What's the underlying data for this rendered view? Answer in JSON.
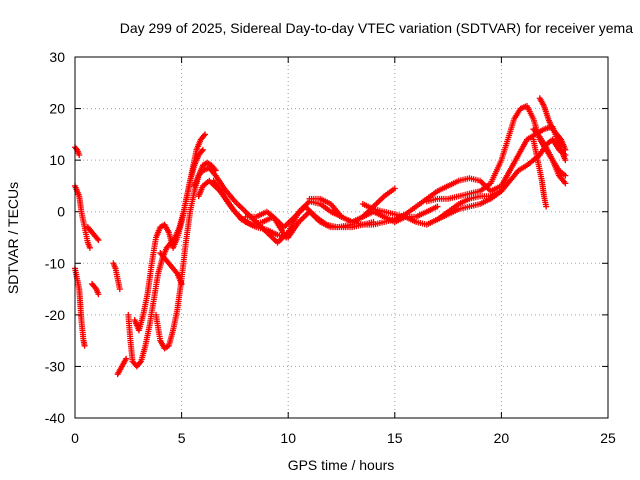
{
  "chart_data": {
    "type": "scatter",
    "title": "Day 299 of 2025, Sidereal Day-to-day VTEC variation (SDTVAR) for receiver yema",
    "xlabel": "GPS time / hours",
    "ylabel": "SDTVAR / TECUs",
    "xlim": [
      0,
      25
    ],
    "ylim": [
      -40,
      30
    ],
    "xticks": [
      0,
      5,
      10,
      15,
      20,
      25
    ],
    "yticks": [
      -40,
      -30,
      -20,
      -10,
      0,
      10,
      20,
      30
    ],
    "grid": true,
    "marker": "+",
    "series_color": "#ff0000",
    "series": [
      {
        "name": "trace-a",
        "points": [
          [
            0.0,
            12.5
          ],
          [
            0.1,
            12.0
          ],
          [
            0.2,
            11.0
          ]
        ]
      },
      {
        "name": "trace-b",
        "points": [
          [
            0.0,
            5.0
          ],
          [
            0.2,
            3.0
          ],
          [
            0.3,
            0.0
          ],
          [
            0.4,
            -2.0
          ],
          [
            0.5,
            -4.0
          ],
          [
            0.6,
            -6.0
          ],
          [
            0.7,
            -7.0
          ]
        ]
      },
      {
        "name": "trace-c",
        "points": [
          [
            0.0,
            -11.0
          ],
          [
            0.1,
            -13.0
          ],
          [
            0.2,
            -15.0
          ],
          [
            0.25,
            -18.0
          ],
          [
            0.3,
            -21.0
          ],
          [
            0.35,
            -23.0
          ],
          [
            0.4,
            -25.0
          ],
          [
            0.45,
            -26.0
          ]
        ]
      },
      {
        "name": "trace-d",
        "points": [
          [
            0.6,
            -3.0
          ],
          [
            0.8,
            -4.0
          ],
          [
            1.0,
            -5.0
          ],
          [
            1.1,
            -5.5
          ]
        ]
      },
      {
        "name": "trace-e",
        "points": [
          [
            0.8,
            -14.0
          ],
          [
            1.0,
            -15.0
          ],
          [
            1.1,
            -16.0
          ]
        ]
      },
      {
        "name": "trace-f",
        "points": [
          [
            1.8,
            -10.0
          ],
          [
            1.9,
            -11.0
          ],
          [
            2.0,
            -13.0
          ],
          [
            2.1,
            -15.0
          ]
        ]
      },
      {
        "name": "trace-g",
        "points": [
          [
            2.0,
            -31.5
          ],
          [
            2.2,
            -30.0
          ],
          [
            2.4,
            -28.5
          ]
        ]
      },
      {
        "name": "trace-h",
        "points": [
          [
            2.5,
            -20.0
          ],
          [
            2.6,
            -25.0
          ],
          [
            2.7,
            -29.0
          ],
          [
            2.9,
            -30.0
          ],
          [
            3.1,
            -29.0
          ],
          [
            3.3,
            -26.0
          ],
          [
            3.5,
            -22.0
          ],
          [
            3.7,
            -17.0
          ],
          [
            3.9,
            -12.0
          ],
          [
            4.1,
            -9.0
          ],
          [
            4.3,
            -7.0
          ],
          [
            4.5,
            -6.0
          ],
          [
            4.7,
            -5.0
          ],
          [
            4.9,
            -3.0
          ],
          [
            5.1,
            0.0
          ],
          [
            5.3,
            4.0
          ],
          [
            5.5,
            8.0
          ],
          [
            5.7,
            12.0
          ],
          [
            5.9,
            14.0
          ],
          [
            6.1,
            15.0
          ]
        ]
      },
      {
        "name": "trace-i",
        "points": [
          [
            2.8,
            -21.0
          ],
          [
            3.0,
            -23.0
          ],
          [
            3.2,
            -20.0
          ],
          [
            3.4,
            -16.0
          ],
          [
            3.6,
            -10.0
          ],
          [
            3.8,
            -5.0
          ],
          [
            4.0,
            -3.0
          ],
          [
            4.2,
            -2.5
          ],
          [
            4.4,
            -4.0
          ],
          [
            4.6,
            -7.0
          ],
          [
            4.8,
            -5.0
          ],
          [
            5.0,
            -2.0
          ],
          [
            5.2,
            2.0
          ],
          [
            5.4,
            6.0
          ],
          [
            5.6,
            9.0
          ],
          [
            5.8,
            11.0
          ],
          [
            6.0,
            12.0
          ]
        ]
      },
      {
        "name": "trace-j",
        "points": [
          [
            3.8,
            -20.0
          ],
          [
            4.0,
            -25.0
          ],
          [
            4.2,
            -26.5
          ],
          [
            4.4,
            -26.0
          ],
          [
            4.6,
            -23.0
          ],
          [
            4.8,
            -19.0
          ],
          [
            5.0,
            -13.0
          ],
          [
            5.2,
            -6.0
          ],
          [
            5.4,
            0.0
          ],
          [
            5.6,
            4.0
          ],
          [
            5.8,
            7.0
          ],
          [
            6.0,
            9.0
          ],
          [
            6.2,
            9.5
          ],
          [
            6.4,
            9.0
          ],
          [
            6.6,
            8.0
          ]
        ]
      },
      {
        "name": "trace-k",
        "points": [
          [
            4.0,
            -8.0
          ],
          [
            4.2,
            -9.0
          ],
          [
            4.4,
            -10.0
          ],
          [
            4.6,
            -11.0
          ],
          [
            4.8,
            -12.0
          ],
          [
            5.0,
            -14.0
          ]
        ]
      },
      {
        "name": "trace-l",
        "points": [
          [
            5.6,
            5.0
          ],
          [
            5.8,
            7.0
          ],
          [
            6.0,
            8.0
          ],
          [
            6.3,
            8.5
          ],
          [
            6.6,
            7.0
          ],
          [
            7.0,
            4.5
          ],
          [
            7.5,
            2.0
          ],
          [
            8.0,
            0.0
          ],
          [
            8.5,
            -2.0
          ],
          [
            9.0,
            -4.0
          ],
          [
            9.5,
            -6.0
          ],
          [
            10.0,
            -4.0
          ],
          [
            10.5,
            0.0
          ],
          [
            11.0,
            2.0
          ],
          [
            11.5,
            1.5
          ],
          [
            12.0,
            0.0
          ],
          [
            12.5,
            -1.0
          ]
        ]
      },
      {
        "name": "trace-m",
        "points": [
          [
            5.8,
            3.0
          ],
          [
            6.0,
            5.0
          ],
          [
            6.3,
            6.0
          ],
          [
            6.8,
            4.0
          ],
          [
            7.3,
            1.0
          ],
          [
            7.8,
            -1.5
          ],
          [
            8.3,
            -2.5
          ],
          [
            8.8,
            -2.0
          ],
          [
            9.3,
            -1.0
          ],
          [
            9.8,
            -3.0
          ],
          [
            10.3,
            -1.0
          ],
          [
            10.8,
            1.0
          ],
          [
            11.3,
            -1.0
          ],
          [
            11.8,
            -2.5
          ],
          [
            12.3,
            -3.0
          ],
          [
            13.0,
            -2.5
          ]
        ]
      },
      {
        "name": "trace-n",
        "points": [
          [
            6.5,
            6.0
          ],
          [
            7.0,
            3.0
          ],
          [
            7.5,
            0.0
          ],
          [
            8.0,
            -2.0
          ],
          [
            8.5,
            -3.0
          ],
          [
            9.0,
            -3.5
          ],
          [
            9.5,
            -4.5
          ],
          [
            10.0,
            -5.0
          ],
          [
            10.5,
            -2.0
          ],
          [
            11.0,
            0.0
          ],
          [
            11.5,
            -2.0
          ],
          [
            12.0,
            -3.0
          ],
          [
            12.5,
            -3.0
          ],
          [
            13.0,
            -3.0
          ],
          [
            13.5,
            -2.5
          ],
          [
            14.0,
            -2.0
          ]
        ]
      },
      {
        "name": "trace-o",
        "points": [
          [
            8.0,
            -1.0
          ],
          [
            8.5,
            -1.0
          ],
          [
            9.0,
            0.0
          ],
          [
            9.3,
            -1.0
          ],
          [
            9.6,
            -3.0
          ],
          [
            9.9,
            -5.0
          ],
          [
            10.2,
            -3.0
          ]
        ]
      },
      {
        "name": "trace-p",
        "points": [
          [
            11.0,
            2.5
          ],
          [
            11.5,
            2.5
          ],
          [
            12.0,
            1.5
          ],
          [
            12.5,
            -1.0
          ],
          [
            13.0,
            -2.0
          ],
          [
            13.5,
            -1.0
          ],
          [
            14.0,
            0.0
          ],
          [
            14.5,
            -1.0
          ],
          [
            15.0,
            -2.0
          ],
          [
            15.5,
            -1.0
          ],
          [
            16.0,
            -1.0
          ],
          [
            16.5,
            0.0
          ],
          [
            17.0,
            1.0
          ]
        ]
      },
      {
        "name": "trace-q",
        "points": [
          [
            13.5,
            1.5
          ],
          [
            14.0,
            0.5
          ],
          [
            14.5,
            0.0
          ],
          [
            15.0,
            -0.5
          ],
          [
            15.5,
            -1.0
          ],
          [
            16.0,
            -2.0
          ],
          [
            16.5,
            -2.5
          ],
          [
            17.0,
            -1.5
          ],
          [
            17.5,
            0.0
          ],
          [
            18.0,
            1.5
          ],
          [
            18.5,
            2.5
          ],
          [
            19.0,
            3.0
          ],
          [
            19.5,
            3.0
          ],
          [
            20.0,
            4.0
          ]
        ]
      },
      {
        "name": "trace-r",
        "points": [
          [
            13.5,
            -1.0
          ],
          [
            14.0,
            1.0
          ],
          [
            14.5,
            3.0
          ],
          [
            15.0,
            4.5
          ]
        ]
      },
      {
        "name": "trace-s",
        "points": [
          [
            13.0,
            -2.0
          ],
          [
            13.5,
            -2.5
          ],
          [
            14.0,
            -2.5
          ],
          [
            14.5,
            -2.0
          ],
          [
            15.0,
            -1.5
          ],
          [
            15.5,
            -0.5
          ],
          [
            16.0,
            1.0
          ],
          [
            16.5,
            2.5
          ],
          [
            17.0,
            4.0
          ],
          [
            17.5,
            5.0
          ],
          [
            18.0,
            6.0
          ],
          [
            18.5,
            6.5
          ],
          [
            19.0,
            6.0
          ],
          [
            19.5,
            4.0
          ],
          [
            20.0,
            5.0
          ],
          [
            20.4,
            8.0
          ],
          [
            20.8,
            11.0
          ],
          [
            21.2,
            14.0
          ],
          [
            21.6,
            15.0
          ],
          [
            22.0,
            16.0
          ],
          [
            22.4,
            16.5
          ],
          [
            22.8,
            12.0
          ],
          [
            23.0,
            10.0
          ]
        ]
      },
      {
        "name": "trace-t",
        "points": [
          [
            16.5,
            2.0
          ],
          [
            17.0,
            2.5
          ],
          [
            17.5,
            2.5
          ],
          [
            18.0,
            3.0
          ],
          [
            18.5,
            3.5
          ],
          [
            19.0,
            4.0
          ],
          [
            19.5,
            5.5
          ],
          [
            20.0,
            10.0
          ],
          [
            20.3,
            14.0
          ],
          [
            20.6,
            18.0
          ],
          [
            20.9,
            20.0
          ],
          [
            21.2,
            20.5
          ],
          [
            21.5,
            18.0
          ],
          [
            21.8,
            14.0
          ],
          [
            22.1,
            12.0
          ],
          [
            22.4,
            10.0
          ],
          [
            22.7,
            8.0
          ],
          [
            23.0,
            7.0
          ]
        ]
      },
      {
        "name": "trace-u",
        "points": [
          [
            17.0,
            -1.5
          ],
          [
            17.5,
            -0.5
          ],
          [
            18.0,
            0.5
          ],
          [
            18.5,
            1.0
          ],
          [
            19.0,
            1.5
          ],
          [
            19.5,
            2.5
          ],
          [
            20.0,
            4.0
          ],
          [
            20.4,
            6.0
          ],
          [
            20.8,
            8.0
          ],
          [
            21.2,
            9.0
          ],
          [
            21.5,
            10.0
          ],
          [
            21.8,
            11.0
          ],
          [
            22.1,
            13.0
          ],
          [
            22.4,
            14.0
          ],
          [
            22.7,
            12.0
          ],
          [
            23.0,
            11.0
          ]
        ]
      },
      {
        "name": "trace-v",
        "points": [
          [
            21.8,
            22.0
          ],
          [
            22.0,
            20.5
          ],
          [
            22.2,
            18.0
          ],
          [
            22.4,
            16.0
          ],
          [
            22.6,
            15.0
          ],
          [
            22.8,
            14.0
          ],
          [
            23.0,
            12.0
          ]
        ]
      },
      {
        "name": "trace-w",
        "points": [
          [
            21.5,
            14.0
          ],
          [
            21.7,
            10.0
          ],
          [
            21.9,
            6.0
          ],
          [
            22.0,
            3.0
          ],
          [
            22.1,
            1.0
          ]
        ]
      },
      {
        "name": "trace-x",
        "points": [
          [
            21.5,
            16.0
          ],
          [
            21.8,
            14.5
          ],
          [
            22.1,
            12.5
          ],
          [
            22.4,
            10.0
          ],
          [
            22.7,
            7.0
          ],
          [
            23.0,
            5.5
          ]
        ]
      }
    ]
  }
}
